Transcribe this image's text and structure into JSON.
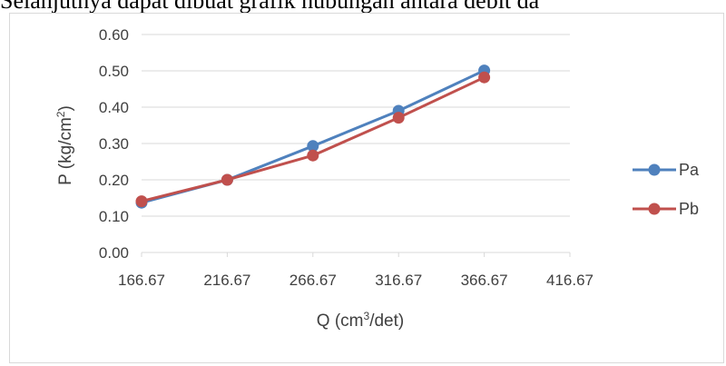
{
  "caption_text": "Selanjutnya dapat dibuat grafik hubungan antara debit da",
  "chart_data": {
    "type": "line",
    "xlabel": "Q (cm³/det)",
    "ylabel": "P (kg/cm²)",
    "xlim": [
      166.67,
      416.67
    ],
    "ylim": [
      0.0,
      0.6
    ],
    "x_ticks": [
      "166.67",
      "216.67",
      "266.67",
      "316.67",
      "366.67",
      "416.67"
    ],
    "y_ticks": [
      "0.00",
      "0.10",
      "0.20",
      "0.30",
      "0.40",
      "0.50",
      "0.60"
    ],
    "grid": true,
    "legend_position": "right",
    "series": [
      {
        "name": "Pa",
        "color": "#4f81bd",
        "x": [
          166.67,
          216.67,
          266.67,
          316.67,
          366.67
        ],
        "y": [
          0.137,
          0.2,
          0.293,
          0.39,
          0.501
        ]
      },
      {
        "name": "Pb",
        "color": "#c0504d",
        "x": [
          166.67,
          216.67,
          266.67,
          316.67,
          366.67
        ],
        "y": [
          0.141,
          0.2,
          0.267,
          0.371,
          0.482
        ]
      }
    ]
  }
}
